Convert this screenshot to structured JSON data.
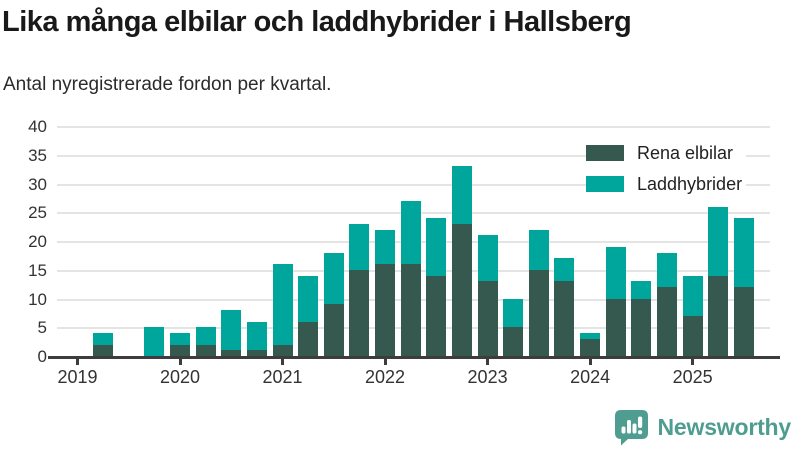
{
  "title": "Lika många elbilar och laddhybrider i Hallsberg",
  "subtitle": "Antal nyregistrerade fordon per kvartal.",
  "legend": {
    "items": [
      {
        "label": "Rena elbilar",
        "color": "#35594e"
      },
      {
        "label": "Laddhybrider",
        "color": "#00a69b"
      }
    ]
  },
  "footer": {
    "brand": "Newsworthy",
    "color": "#4e9d90"
  },
  "colors": {
    "series_elbilar": "#35594e",
    "series_laddhybrider": "#00a69b",
    "axis_line": "#3d3d3d",
    "gridline": "#e4e4e4",
    "text_dark": "#191919",
    "brand_teal": "#4e9d90"
  },
  "chart_data": {
    "type": "bar",
    "stacked": true,
    "title": "Lika många elbilar och laddhybrider i Hallsberg",
    "subtitle": "Antal nyregistrerade fordon per kvartal.",
    "x_unit": "quarter",
    "x_start": "2019 Q1",
    "x_end": "2025 Q3",
    "x_tick_labels": [
      "2019",
      "2020",
      "2021",
      "2022",
      "2023",
      "2024",
      "2025"
    ],
    "ylim": [
      0,
      40
    ],
    "ytick_step": 5,
    "ytick_labels": [
      "0",
      "5",
      "10",
      "15",
      "20",
      "25",
      "30",
      "35",
      "40"
    ],
    "grid": true,
    "legend_position": "top-right",
    "series": [
      {
        "name": "Rena elbilar",
        "color": "#35594e",
        "values": [
          0,
          2,
          0,
          0,
          2,
          2,
          1,
          1,
          2,
          6,
          9,
          15,
          16,
          16,
          14,
          23,
          13,
          5,
          15,
          13,
          3,
          10,
          10,
          12,
          7,
          14,
          12
        ]
      },
      {
        "name": "Laddhybrider",
        "color": "#00a69b",
        "values": [
          0,
          2,
          0,
          5,
          2,
          3,
          7,
          5,
          14,
          8,
          9,
          8,
          6,
          11,
          10,
          10,
          8,
          5,
          7,
          4,
          1,
          9,
          3,
          6,
          7,
          12,
          12
        ]
      }
    ],
    "totals": [
      0,
      4,
      0,
      5,
      4,
      5,
      8,
      6,
      16,
      14,
      18,
      23,
      22,
      27,
      24,
      33,
      21,
      10,
      22,
      17,
      4,
      19,
      13,
      18,
      14,
      26,
      24
    ]
  }
}
